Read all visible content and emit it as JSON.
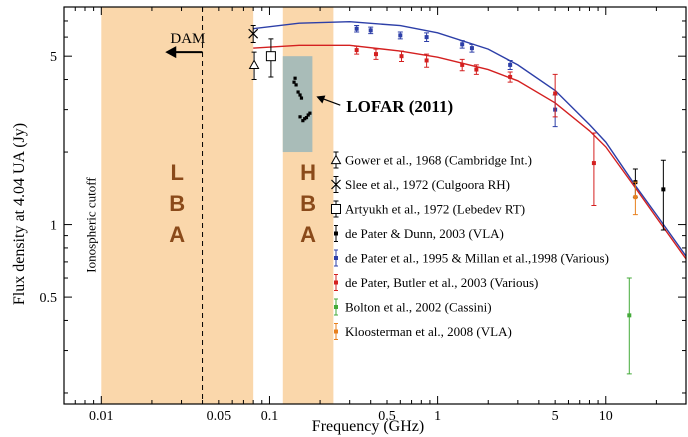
{
  "chart_data": {
    "type": "scatter",
    "title": "",
    "xlabel": "Frequency (GHz)",
    "ylabel": "Flux density at 4.04 UA (Jy)",
    "xscale": "log",
    "yscale": "log",
    "xlim": [
      0.006,
      30
    ],
    "ylim": [
      0.18,
      8
    ],
    "x_ticks": [
      {
        "value": 0.01,
        "label": "0.01"
      },
      {
        "value": 0.05,
        "label": "0.05"
      },
      {
        "value": 0.1,
        "label": "0.1"
      },
      {
        "value": 0.5,
        "label": "0.5"
      },
      {
        "value": 1,
        "label": "1"
      },
      {
        "value": 5,
        "label": "5"
      },
      {
        "value": 10,
        "label": "10"
      }
    ],
    "y_ticks": [
      {
        "value": 0.5,
        "label": "0.5"
      },
      {
        "value": 1,
        "label": "1"
      },
      {
        "value": 5,
        "label": "5"
      }
    ],
    "bands": [
      {
        "x0": 0.01,
        "x1": 0.08,
        "color": "#fad7ab",
        "letters": [
          "L",
          "B",
          "A"
        ]
      },
      {
        "x0": 0.12,
        "x1": 0.24,
        "color": "#fad7ab",
        "letters": [
          "H",
          "B",
          "A"
        ]
      }
    ],
    "lofar_box": {
      "x0": 0.12,
      "x1": 0.18,
      "y0": 2.0,
      "y1": 5.0,
      "color": "#a9bcb8"
    },
    "ionospheric_cutoff": {
      "x": 0.04,
      "label": "Ionospheric cutoff"
    },
    "dam": {
      "label": "DAM",
      "x_from": 0.04,
      "x_to": 0.024,
      "y": 5.2
    },
    "lofar_annotation": {
      "label": "LOFAR (2011)",
      "arrow_from": [
        0.23,
        3.1
      ],
      "arrow_to": [
        0.18,
        3.4
      ]
    },
    "series": [
      {
        "name": "Gower et al., 1968 (Cambridge Int.)",
        "marker": "triangle",
        "color": "#000000",
        "points": [
          {
            "x": 0.081,
            "y": 4.6,
            "err": 0.6
          }
        ]
      },
      {
        "name": "Slee et al., 1972 (Culgoora RH)",
        "marker": "cross",
        "color": "#000000",
        "points": [
          {
            "x": 0.08,
            "y": 6.2,
            "err": 0.5
          }
        ]
      },
      {
        "name": "Artyukh et al., 1972 (Lebedev RT)",
        "marker": "square",
        "color": "#000000",
        "points": [
          {
            "x": 0.102,
            "y": 5.0,
            "err": 0.9
          }
        ]
      },
      {
        "name": "de Pater & Dunn, 2003 (VLA)",
        "marker": "dot",
        "color": "#000000",
        "points": [
          {
            "x": 15.0,
            "y": 1.5,
            "err": 0.2
          },
          {
            "x": 22.0,
            "y": 1.4,
            "err": 0.45
          }
        ]
      },
      {
        "name": "de Pater et al., 1995 & Millan et al.,1998 (Various)",
        "marker": "dot",
        "color": "#2d3fa8",
        "points": [
          {
            "x": 0.33,
            "y": 6.5,
            "err": 0.2
          },
          {
            "x": 0.4,
            "y": 6.4,
            "err": 0.2
          },
          {
            "x": 0.6,
            "y": 6.1,
            "err": 0.2
          },
          {
            "x": 0.86,
            "y": 6.0,
            "err": 0.25
          },
          {
            "x": 1.4,
            "y": 5.6,
            "err": 0.2
          },
          {
            "x": 1.6,
            "y": 5.4,
            "err": 0.2
          },
          {
            "x": 2.7,
            "y": 4.6,
            "err": 0.2
          },
          {
            "x": 5.0,
            "y": 3.0,
            "err": 0.45
          }
        ]
      },
      {
        "name": "de Pater, Butler et al., 2003 (Various)",
        "marker": "dot",
        "color": "#d42020",
        "points": [
          {
            "x": 0.33,
            "y": 5.3,
            "err": 0.2
          },
          {
            "x": 0.43,
            "y": 5.1,
            "err": 0.25
          },
          {
            "x": 0.61,
            "y": 5.0,
            "err": 0.25
          },
          {
            "x": 0.86,
            "y": 4.8,
            "err": 0.3
          },
          {
            "x": 1.4,
            "y": 4.6,
            "err": 0.25
          },
          {
            "x": 1.7,
            "y": 4.4,
            "err": 0.2
          },
          {
            "x": 2.7,
            "y": 4.1,
            "err": 0.2
          },
          {
            "x": 5.0,
            "y": 3.5,
            "err": 0.7
          },
          {
            "x": 8.5,
            "y": 1.8,
            "err": 0.6
          }
        ]
      },
      {
        "name": "Bolton et al., 2002 (Cassini)",
        "marker": "dot",
        "color": "#44aa3a",
        "points": [
          {
            "x": 13.8,
            "y": 0.42,
            "err": 0.18
          }
        ]
      },
      {
        "name": "Kloosterman et al., 2008 (VLA)",
        "marker": "dot",
        "color": "#e8801e",
        "points": [
          {
            "x": 15.0,
            "y": 1.3,
            "err": 0.2
          }
        ]
      }
    ],
    "lofar_points": [
      {
        "x": 0.14,
        "y": 3.9
      },
      {
        "x": 0.142,
        "y": 4.05
      },
      {
        "x": 0.144,
        "y": 3.8
      },
      {
        "x": 0.148,
        "y": 3.55
      },
      {
        "x": 0.152,
        "y": 3.45
      },
      {
        "x": 0.155,
        "y": 3.35
      },
      {
        "x": 0.152,
        "y": 2.8
      },
      {
        "x": 0.158,
        "y": 2.7
      },
      {
        "x": 0.162,
        "y": 2.75
      },
      {
        "x": 0.166,
        "y": 2.78
      },
      {
        "x": 0.17,
        "y": 2.85
      },
      {
        "x": 0.174,
        "y": 2.9
      }
    ],
    "fits": [
      {
        "color": "#2d3fa8",
        "points": [
          [
            0.08,
            6.5
          ],
          [
            0.15,
            6.85
          ],
          [
            0.3,
            6.95
          ],
          [
            0.6,
            6.7
          ],
          [
            1,
            6.25
          ],
          [
            2,
            5.35
          ],
          [
            3,
            4.6
          ],
          [
            5,
            3.6
          ],
          [
            8,
            2.6
          ],
          [
            10,
            2.2
          ],
          [
            15,
            1.45
          ],
          [
            20,
            1.1
          ],
          [
            30,
            0.74
          ]
        ]
      },
      {
        "color": "#d42020",
        "points": [
          [
            0.08,
            5.4
          ],
          [
            0.15,
            5.55
          ],
          [
            0.3,
            5.55
          ],
          [
            0.6,
            5.25
          ],
          [
            1,
            4.95
          ],
          [
            2,
            4.4
          ],
          [
            3,
            3.95
          ],
          [
            5,
            3.2
          ],
          [
            8,
            2.45
          ],
          [
            10,
            2.1
          ],
          [
            15,
            1.42
          ],
          [
            20,
            1.07
          ],
          [
            30,
            0.72
          ]
        ]
      }
    ]
  }
}
